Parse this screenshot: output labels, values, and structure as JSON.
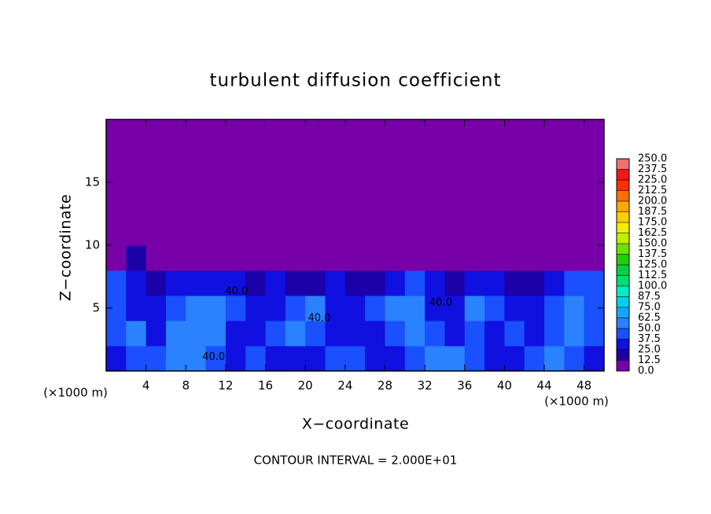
{
  "chart_data": {
    "type": "heatmap",
    "title": "turbulent diffusion coefficient",
    "xlabel": "X−coordinate",
    "ylabel": "Z−coordinate",
    "xunit": "(×1000 m)",
    "yunit": "(×1000 m)",
    "footer": "CONTOUR INTERVAL = 2.000E+01",
    "xlim": [
      0,
      50
    ],
    "ylim": [
      0,
      20
    ],
    "xticks": [
      4,
      8,
      12,
      16,
      20,
      24,
      28,
      32,
      36,
      40,
      44,
      48
    ],
    "yticks": [
      5,
      10,
      15
    ],
    "x_cell": 2,
    "y_cell": 2,
    "z": [
      [
        30,
        45,
        40,
        50,
        55,
        45,
        30,
        40,
        35,
        25,
        30,
        45,
        40,
        30,
        25,
        40,
        50,
        55,
        45,
        30,
        35,
        45,
        50,
        40,
        35
      ],
      [
        40,
        50,
        35,
        55,
        60,
        50,
        35,
        30,
        45,
        55,
        40,
        30,
        35,
        25,
        45,
        55,
        40,
        30,
        45,
        35,
        40,
        30,
        45,
        50,
        40
      ],
      [
        45,
        35,
        30,
        40,
        50,
        55,
        40,
        35,
        25,
        45,
        50,
        30,
        25,
        40,
        55,
        50,
        35,
        25,
        50,
        45,
        30,
        35,
        40,
        55,
        45
      ],
      [
        40,
        25,
        20,
        30,
        25,
        35,
        30,
        20,
        25,
        15,
        20,
        25,
        15,
        20,
        30,
        40,
        25,
        20,
        35,
        25,
        20,
        15,
        25,
        40,
        45
      ],
      [
        10,
        15,
        5,
        5,
        5,
        5,
        5,
        5,
        5,
        5,
        0,
        0,
        0,
        0,
        5,
        5,
        5,
        0,
        0,
        0,
        0,
        0,
        0,
        5,
        10
      ],
      [
        0,
        0,
        0,
        0,
        0,
        0,
        0,
        0,
        0,
        0,
        0,
        0,
        0,
        0,
        0,
        0,
        0,
        0,
        0,
        0,
        0,
        0,
        0,
        0,
        0
      ],
      [
        0,
        0,
        0,
        0,
        0,
        0,
        0,
        0,
        0,
        0,
        0,
        0,
        0,
        0,
        0,
        0,
        0,
        0,
        0,
        0,
        0,
        0,
        0,
        0,
        0
      ],
      [
        0,
        0,
        0,
        0,
        0,
        0,
        0,
        0,
        0,
        0,
        0,
        0,
        0,
        0,
        0,
        0,
        0,
        0,
        0,
        0,
        0,
        0,
        0,
        0,
        0
      ],
      [
        0,
        0,
        0,
        0,
        0,
        0,
        0,
        0,
        0,
        0,
        0,
        0,
        0,
        0,
        0,
        0,
        0,
        0,
        0,
        0,
        0,
        0,
        0,
        0,
        0
      ],
      [
        0,
        0,
        0,
        0,
        0,
        0,
        0,
        0,
        0,
        0,
        0,
        0,
        0,
        0,
        0,
        0,
        0,
        0,
        0,
        0,
        0,
        0,
        0,
        0,
        0
      ]
    ],
    "levels": [
      {
        "value": 0,
        "label": "0.0"
      },
      {
        "value": 12.5,
        "label": "12.5"
      },
      {
        "value": 25,
        "label": "25.0"
      },
      {
        "value": 37.5,
        "label": "37.5"
      },
      {
        "value": 50,
        "label": "50.0"
      },
      {
        "value": 62.5,
        "label": "62.5"
      },
      {
        "value": 75,
        "label": "75.0"
      },
      {
        "value": 87.5,
        "label": "87.5"
      },
      {
        "value": 100,
        "label": "100.0"
      },
      {
        "value": 112.5,
        "label": "112.5"
      },
      {
        "value": 125,
        "label": "125.0"
      },
      {
        "value": 137.5,
        "label": "137.5"
      },
      {
        "value": 150,
        "label": "150.0"
      },
      {
        "value": 162.5,
        "label": "162.5"
      },
      {
        "value": 175,
        "label": "175.0"
      },
      {
        "value": 187.5,
        "label": "187.5"
      },
      {
        "value": 200,
        "label": "200.0"
      },
      {
        "value": 212.5,
        "label": "212.5"
      },
      {
        "value": 225,
        "label": "225.0"
      },
      {
        "value": 237.5,
        "label": "237.5"
      },
      {
        "value": 250,
        "label": "250.0"
      }
    ],
    "colors": [
      "#7800a8",
      "#1c00a8",
      "#1010e0",
      "#1a50ff",
      "#2a82ff",
      "#10a8ff",
      "#00d0f0",
      "#00f0c0",
      "#00e070",
      "#00d040",
      "#20d000",
      "#70e000",
      "#c0f000",
      "#f0f000",
      "#ffd000",
      "#ffa800",
      "#ff7000",
      "#ff3000",
      "#f01818",
      "#f07070"
    ],
    "annotations": [
      {
        "text": "40.0",
        "x": 13.1,
        "y": 6.3
      },
      {
        "text": "40.0",
        "x": 21.4,
        "y": 4.2
      },
      {
        "text": "40.0",
        "x": 10.8,
        "y": 1.1
      },
      {
        "text": "40.0",
        "x": 33.6,
        "y": 5.4
      }
    ]
  }
}
